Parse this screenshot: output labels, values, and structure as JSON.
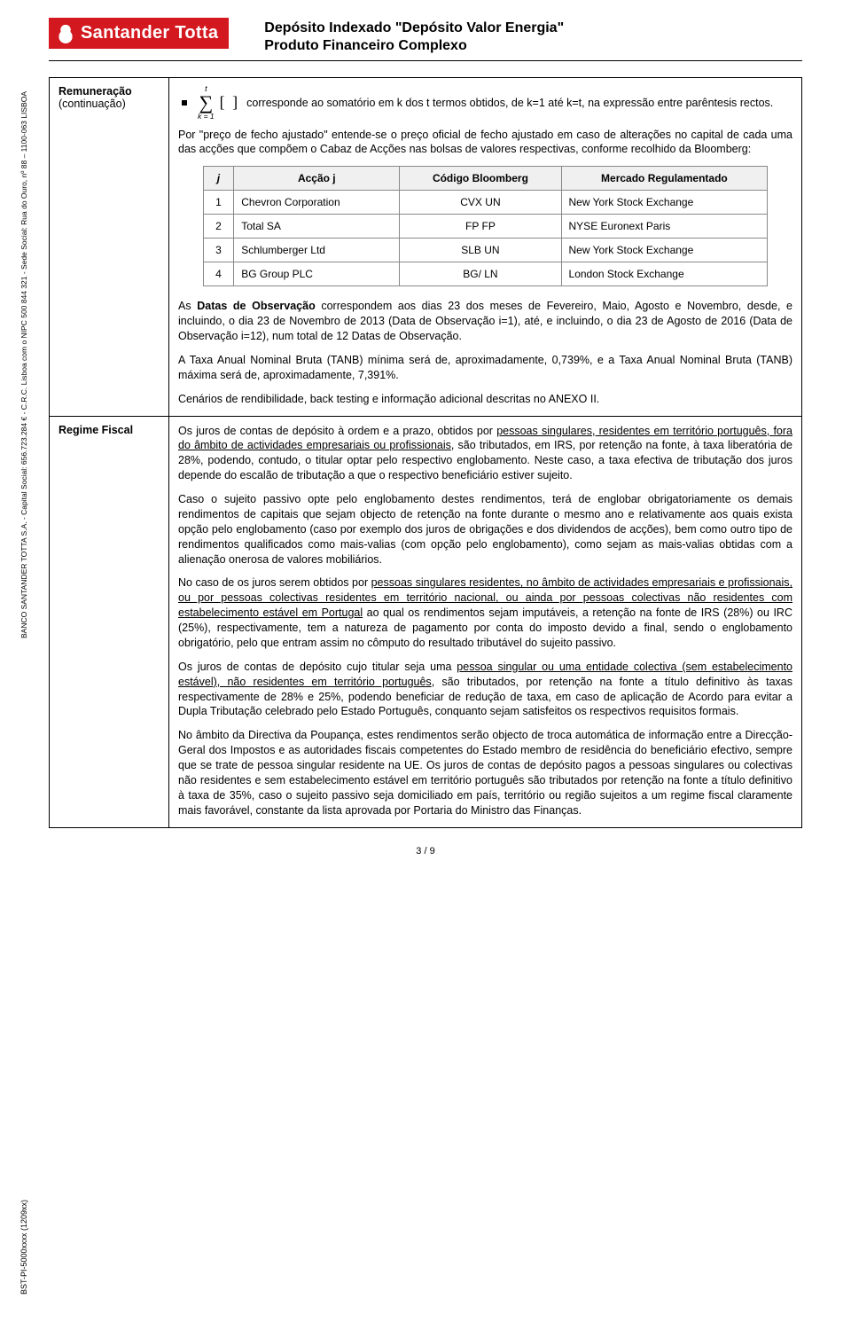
{
  "header": {
    "brand": "Santander Totta",
    "title_line1": "Depósito Indexado \"Depósito Valor Energia\"",
    "title_line2": "Produto Financeiro Complexo"
  },
  "side_text_top": "BANCO SANTANDER TOTTA S.A. - Capital Social: 656.723.284 € - C.R.C. Lisboa com o NIPC 500 844 321 - Sede Social: Rua do Ouro, nº 88 – 1100-063 LISBOA",
  "side_text_bottom": "BST-PI-5000xxxx (1209xx)",
  "sections": {
    "remuneracao": {
      "label": "Remuneração",
      "label_sub": "(continuação)",
      "formula_top": "t",
      "formula_bottom": "k = 1",
      "formula_sigma": "∑",
      "formula_brackets": "[  ]",
      "formula_text": "corresponde ao somatório em k dos t termos obtidos, de k=1 até k=t, na expressão entre parêntesis rectos.",
      "p1": "Por \"preço de fecho ajustado\" entende-se o preço oficial de fecho ajustado em caso de alterações no capital de cada uma das acções que compõem o Cabaz de Acções nas bolsas de valores respectivas, conforme recolhido da Bloomberg:",
      "table": {
        "head_j": "j",
        "head_accao": "Acção j",
        "head_codigo": "Código Bloomberg",
        "head_mercado": "Mercado Regulamentado",
        "rows": [
          {
            "j": "1",
            "accao": "Chevron Corporation",
            "codigo": "CVX UN",
            "mercado": "New York Stock Exchange"
          },
          {
            "j": "2",
            "accao": "Total SA",
            "codigo": "FP FP",
            "mercado": "NYSE Euronext Paris"
          },
          {
            "j": "3",
            "accao": "Schlumberger Ltd",
            "codigo": "SLB UN",
            "mercado": "New York Stock Exchange"
          },
          {
            "j": "4",
            "accao": "BG Group PLC",
            "codigo": "BG/ LN",
            "mercado": "London Stock Exchange"
          }
        ]
      },
      "p2_prefix": "As ",
      "p2_bold": "Datas de Observação",
      "p2_rest": " correspondem aos dias 23 dos meses de Fevereiro, Maio, Agosto e Novembro, desde, e incluindo, o dia 23 de Novembro de 2013 (Data de Observação i=1), até, e incluindo, o dia 23 de Agosto de 2016 (Data de Observação i=12), num total de 12 Datas de Observação.",
      "p3": "A Taxa Anual Nominal Bruta (TANB) mínima será de, aproximadamente, 0,739%, e a Taxa Anual Nominal Bruta (TANB) máxima será de, aproximadamente, 7,391%.",
      "p4": "Cenários de rendibilidade, back testing e informação adicional descritas no ANEXO II."
    },
    "regime": {
      "label": "Regime Fiscal",
      "p1a": "Os juros de contas de depósito à ordem e a prazo, obtidos por ",
      "p1u": "pessoas singulares, residentes em território português, fora do âmbito de actividades empresariais ou profissionais",
      "p1b": ", são tributados, em IRS, por retenção na fonte, à taxa liberatória de 28%, podendo, contudo, o titular optar pelo respectivo englobamento. Neste caso, a taxa efectiva de tributação dos juros depende do escalão de tributação a que o respectivo beneficiário estiver sujeito.",
      "p2": "Caso o sujeito passivo opte pelo englobamento destes rendimentos, terá de englobar obrigatoriamente os demais rendimentos de capitais que sejam objecto de retenção na fonte durante o mesmo ano e relativamente aos quais exista opção pelo englobamento (caso por exemplo dos juros de obrigações e dos dividendos de acções), bem como outro tipo de rendimentos qualificados como mais-valias (com opção pelo englobamento), como sejam as mais-valias obtidas com a alienação onerosa de valores mobiliários.",
      "p3a": "No caso de os juros serem obtidos por ",
      "p3u": "pessoas singulares residentes, no âmbito de actividades empresariais e profissionais, ou por pessoas colectivas residentes em território nacional, ou ainda por pessoas colectivas não residentes com estabelecimento estável em Portugal",
      "p3b": " ao qual os rendimentos sejam imputáveis, a retenção na fonte de IRS (28%) ou IRC (25%), respectivamente, tem a natureza de pagamento por conta do imposto devido a final, sendo o englobamento obrigatório, pelo que entram assim no cômputo do resultado tributável do sujeito passivo.",
      "p4a": "Os juros de contas de depósito cujo titular seja uma ",
      "p4u": "pessoa singular ou uma entidade colectiva (sem estabelecimento estável), não residentes em território português",
      "p4b": ", são tributados, por retenção na fonte a título definitivo às taxas respectivamente de 28% e 25%, podendo beneficiar de redução de taxa, em caso de aplicação de Acordo para evitar a Dupla Tributação celebrado pelo Estado Português, conquanto sejam satisfeitos os respectivos requisitos formais.",
      "p5": "No âmbito da Directiva da Poupança, estes rendimentos serão objecto de troca automática de informação entre a Direcção-Geral dos Impostos e as autoridades fiscais competentes do Estado membro de residência do beneficiário efectivo, sempre que se trate de pessoa singular residente na UE. Os juros de contas de depósito pagos a pessoas singulares ou colectivas não residentes e sem estabelecimento estável em território português são tributados por retenção na fonte a título definitivo à taxa de 35%, caso o sujeito passivo seja domiciliado em país, território ou região sujeitos a um regime fiscal claramente mais favorável, constante da lista aprovada por Portaria do Ministro das Finanças."
    }
  },
  "page_number": "3 / 9"
}
